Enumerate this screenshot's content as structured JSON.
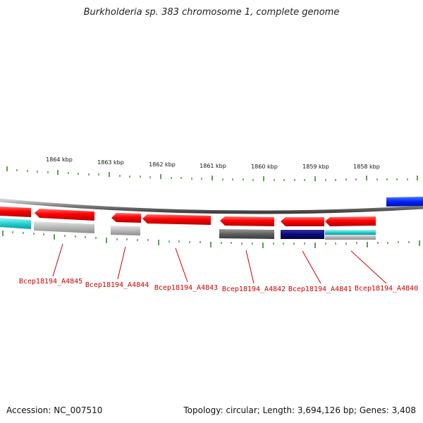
{
  "title": "Burkholderia sp. 383 chromosome 1, complete genome",
  "accession": {
    "label": "Accession:",
    "value": "NC_007510"
  },
  "summary": "Topology: circular; Length: 3,694,126 bp; Genes: 3,408",
  "scale_labels": [
    "1864 kbp",
    "1863 kbp",
    "1862 kbp",
    "1861 kbp",
    "1860 kbp",
    "1859 kbp",
    "1858 kbp"
  ],
  "gene_labels": [
    "Bcep18194_A4845",
    "Bcep18194_A4844",
    "Bcep18194_A4843",
    "Bcep18194_A4842",
    "Bcep18194_A4841",
    "Bcep18194_A4840"
  ],
  "colors": {
    "backbone": "#8a8a8a",
    "tick": "#2e7d22",
    "gene_forward": "#ff0000",
    "gene_forward_blue": "#0033ff",
    "label": "#cc0000",
    "cog_cyan": "#22d3d3",
    "cog_gray": "#b8b8b8",
    "cog_dark_gray": "#666666",
    "cog_navy": "#0a0a78",
    "leader": "#cc0000"
  }
}
